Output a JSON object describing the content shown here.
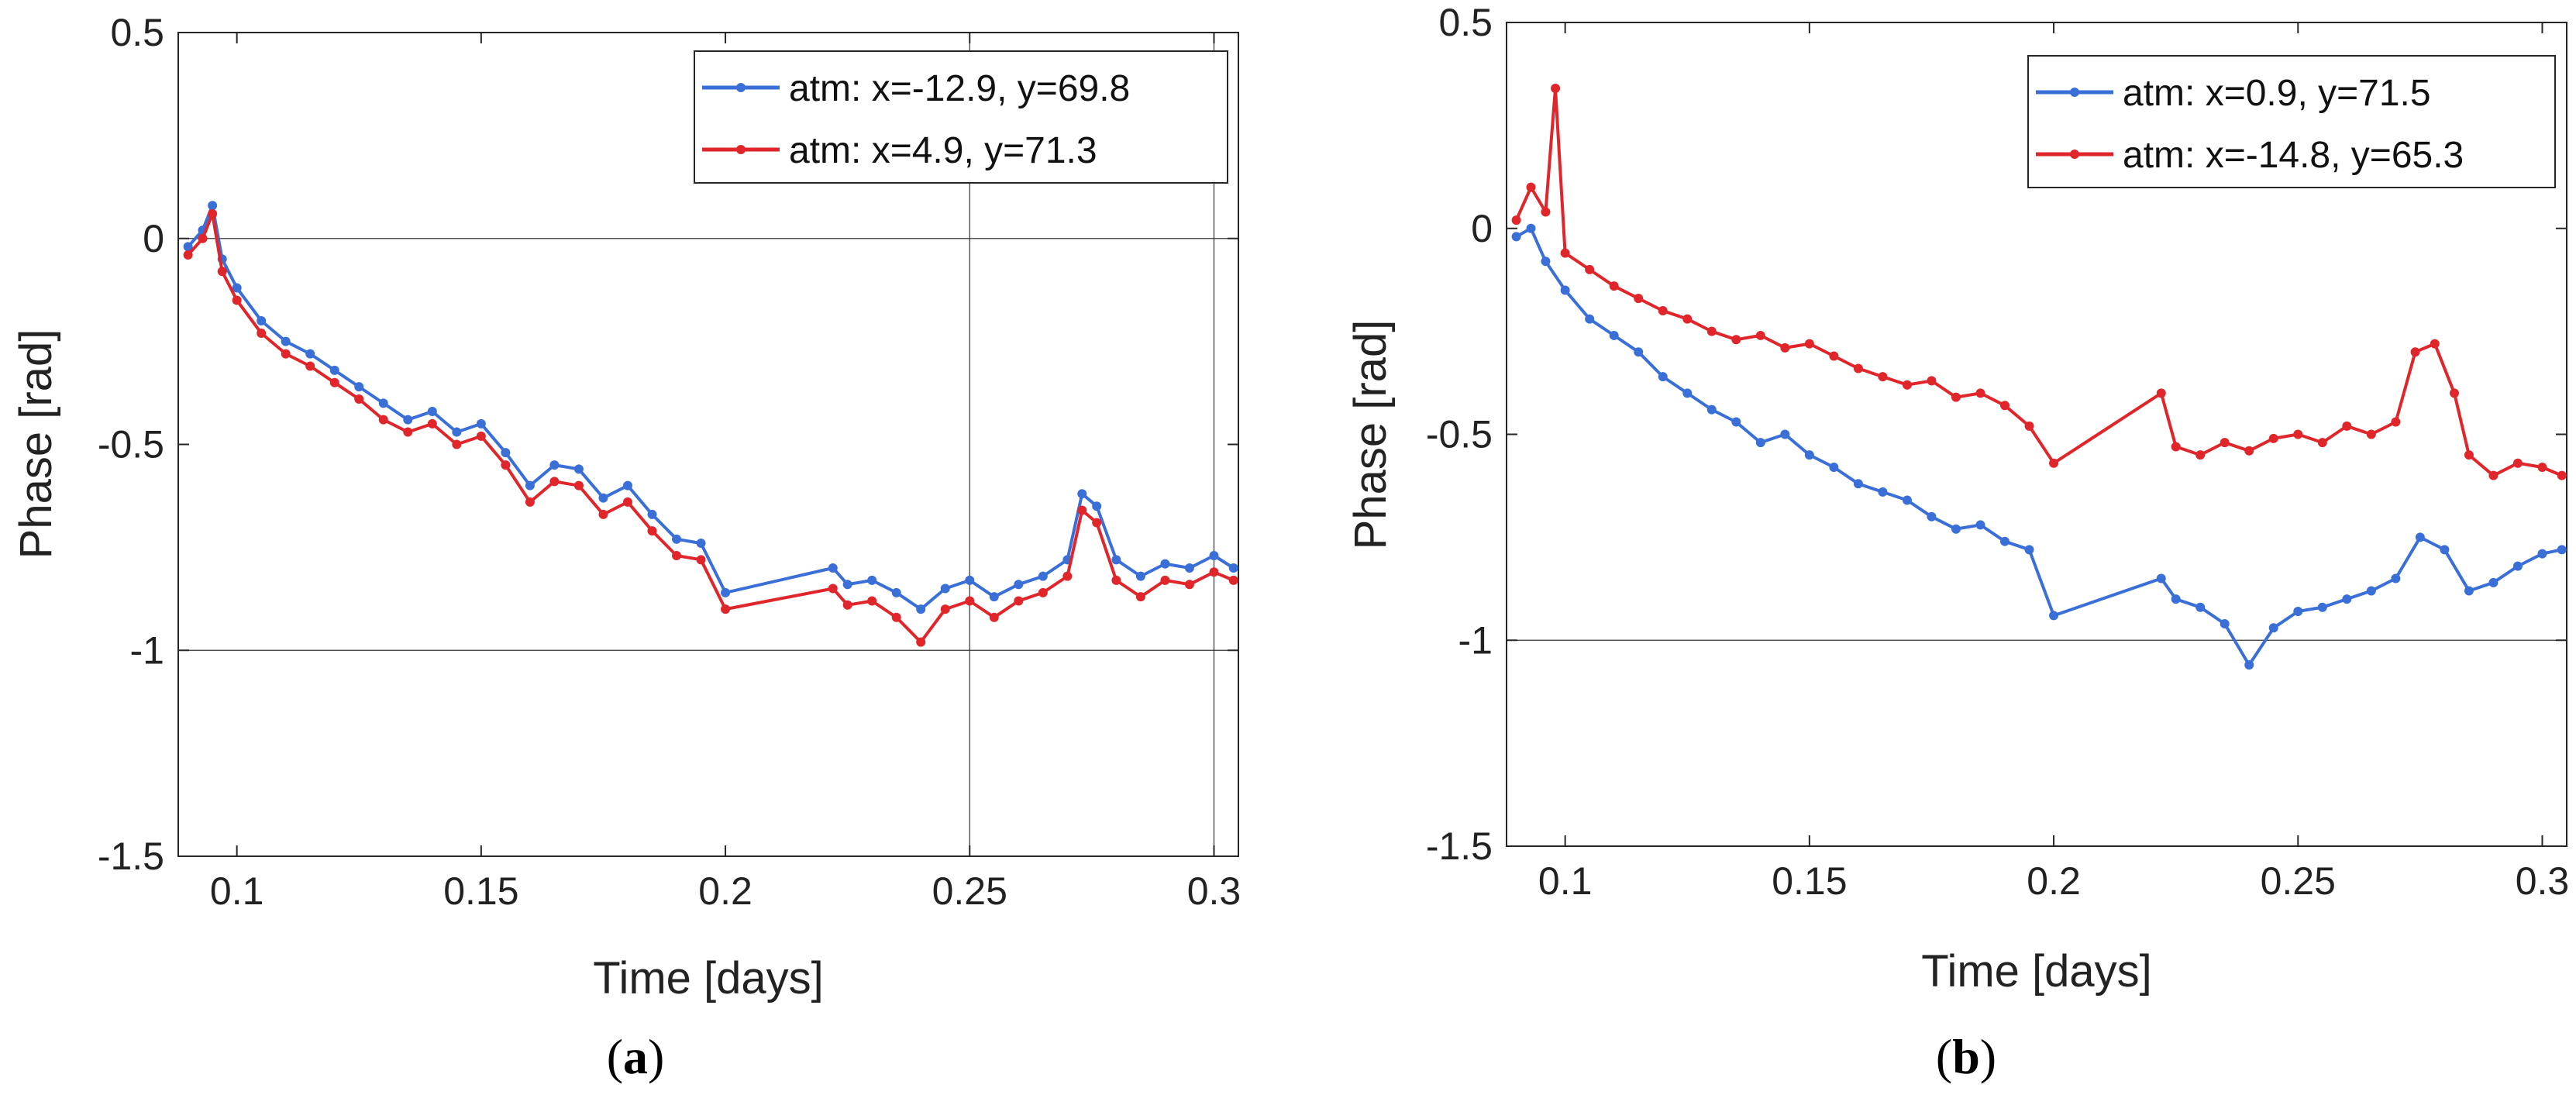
{
  "chart_data": [
    {
      "type": "line",
      "panel_label": "a",
      "xlabel": "Time [days]",
      "ylabel": "Phase [rad]",
      "xlim": [
        0.088,
        0.305
      ],
      "ylim": [
        -1.5,
        0.5
      ],
      "xticks": [
        0.1,
        0.15,
        0.2,
        0.25,
        0.3
      ],
      "xtick_labels": [
        "0.1",
        "0.15",
        "0.2",
        "0.25",
        "0.3"
      ],
      "yticks": [
        -1.5,
        -1,
        -0.5,
        0,
        0.5
      ],
      "ytick_labels": [
        "-1.5",
        "-1",
        "-0.5",
        "0",
        "0.5"
      ],
      "reference_lines": {
        "horizontal": [
          0,
          -1
        ],
        "vertical": [
          0.25,
          0.3
        ]
      },
      "legend_position": "top-right",
      "series": [
        {
          "name": "atm: x=-12.9, y=69.8",
          "color": "#3a6fd8",
          "x": [
            0.09,
            0.093,
            0.095,
            0.097,
            0.1,
            0.105,
            0.11,
            0.115,
            0.12,
            0.125,
            0.13,
            0.135,
            0.14,
            0.145,
            0.15,
            0.155,
            0.16,
            0.165,
            0.17,
            0.175,
            0.18,
            0.185,
            0.19,
            0.195,
            0.2,
            0.222,
            0.225,
            0.23,
            0.235,
            0.24,
            0.245,
            0.25,
            0.255,
            0.26,
            0.265,
            0.27,
            0.273,
            0.276,
            0.28,
            0.285,
            0.29,
            0.295,
            0.3,
            0.304
          ],
          "y": [
            -0.02,
            0.02,
            0.08,
            -0.05,
            -0.12,
            -0.2,
            -0.25,
            -0.28,
            -0.32,
            -0.36,
            -0.4,
            -0.44,
            -0.42,
            -0.47,
            -0.45,
            -0.52,
            -0.6,
            -0.55,
            -0.56,
            -0.63,
            -0.6,
            -0.67,
            -0.73,
            -0.74,
            -0.86,
            -0.8,
            -0.84,
            -0.83,
            -0.86,
            -0.9,
            -0.85,
            -0.83,
            -0.87,
            -0.84,
            -0.82,
            -0.78,
            -0.62,
            -0.65,
            -0.78,
            -0.82,
            -0.79,
            -0.8,
            -0.77,
            -0.8
          ]
        },
        {
          "name": "atm: x=4.9, y=71.3",
          "color": "#e0262b",
          "x": [
            0.09,
            0.093,
            0.095,
            0.097,
            0.1,
            0.105,
            0.11,
            0.115,
            0.12,
            0.125,
            0.13,
            0.135,
            0.14,
            0.145,
            0.15,
            0.155,
            0.16,
            0.165,
            0.17,
            0.175,
            0.18,
            0.185,
            0.19,
            0.195,
            0.2,
            0.222,
            0.225,
            0.23,
            0.235,
            0.24,
            0.245,
            0.25,
            0.255,
            0.26,
            0.265,
            0.27,
            0.273,
            0.276,
            0.28,
            0.285,
            0.29,
            0.295,
            0.3,
            0.304
          ],
          "y": [
            -0.04,
            0.0,
            0.06,
            -0.08,
            -0.15,
            -0.23,
            -0.28,
            -0.31,
            -0.35,
            -0.39,
            -0.44,
            -0.47,
            -0.45,
            -0.5,
            -0.48,
            -0.55,
            -0.64,
            -0.59,
            -0.6,
            -0.67,
            -0.64,
            -0.71,
            -0.77,
            -0.78,
            -0.9,
            -0.85,
            -0.89,
            -0.88,
            -0.92,
            -0.98,
            -0.9,
            -0.88,
            -0.92,
            -0.88,
            -0.86,
            -0.82,
            -0.66,
            -0.69,
            -0.83,
            -0.87,
            -0.83,
            -0.84,
            -0.81,
            -0.83
          ]
        }
      ]
    },
    {
      "type": "line",
      "panel_label": "b",
      "xlabel": "Time [days]",
      "ylabel": "Phase [rad]",
      "xlim": [
        0.088,
        0.305
      ],
      "ylim": [
        -1.5,
        0.5
      ],
      "xticks": [
        0.1,
        0.15,
        0.2,
        0.25,
        0.3
      ],
      "xtick_labels": [
        "0.1",
        "0.15",
        "0.2",
        "0.25",
        "0.3"
      ],
      "yticks": [
        -1.5,
        -1,
        -0.5,
        0,
        0.5
      ],
      "ytick_labels": [
        "-1.5",
        "-1",
        "-0.5",
        "0",
        "0.5"
      ],
      "reference_lines": {
        "horizontal": [
          -1
        ],
        "vertical": []
      },
      "legend_position": "top-right",
      "series": [
        {
          "name": "atm: x=0.9, y=71.5",
          "color": "#3a6fd8",
          "x": [
            0.09,
            0.093,
            0.096,
            0.1,
            0.105,
            0.11,
            0.115,
            0.12,
            0.125,
            0.13,
            0.135,
            0.14,
            0.145,
            0.15,
            0.155,
            0.16,
            0.165,
            0.17,
            0.175,
            0.18,
            0.185,
            0.19,
            0.195,
            0.2,
            0.222,
            0.225,
            0.23,
            0.235,
            0.24,
            0.245,
            0.25,
            0.255,
            0.26,
            0.265,
            0.27,
            0.275,
            0.28,
            0.285,
            0.29,
            0.295,
            0.3,
            0.304
          ],
          "y": [
            -0.02,
            0.0,
            -0.08,
            -0.15,
            -0.22,
            -0.26,
            -0.3,
            -0.36,
            -0.4,
            -0.44,
            -0.47,
            -0.52,
            -0.5,
            -0.55,
            -0.58,
            -0.62,
            -0.64,
            -0.66,
            -0.7,
            -0.73,
            -0.72,
            -0.76,
            -0.78,
            -0.94,
            -0.85,
            -0.9,
            -0.92,
            -0.96,
            -1.06,
            -0.97,
            -0.93,
            -0.92,
            -0.9,
            -0.88,
            -0.85,
            -0.75,
            -0.78,
            -0.88,
            -0.86,
            -0.82,
            -0.79,
            -0.78
          ]
        },
        {
          "name": "atm: x=-14.8, y=65.3",
          "color": "#e0262b",
          "x": [
            0.09,
            0.093,
            0.096,
            0.098,
            0.1,
            0.105,
            0.11,
            0.115,
            0.12,
            0.125,
            0.13,
            0.135,
            0.14,
            0.145,
            0.15,
            0.155,
            0.16,
            0.165,
            0.17,
            0.175,
            0.18,
            0.185,
            0.19,
            0.195,
            0.2,
            0.222,
            0.225,
            0.23,
            0.235,
            0.24,
            0.245,
            0.25,
            0.255,
            0.26,
            0.265,
            0.27,
            0.274,
            0.278,
            0.282,
            0.285,
            0.29,
            0.295,
            0.3,
            0.304
          ],
          "y": [
            0.02,
            0.1,
            0.04,
            0.34,
            -0.06,
            -0.1,
            -0.14,
            -0.17,
            -0.2,
            -0.22,
            -0.25,
            -0.27,
            -0.26,
            -0.29,
            -0.28,
            -0.31,
            -0.34,
            -0.36,
            -0.38,
            -0.37,
            -0.41,
            -0.4,
            -0.43,
            -0.48,
            -0.57,
            -0.4,
            -0.53,
            -0.55,
            -0.52,
            -0.54,
            -0.51,
            -0.5,
            -0.52,
            -0.48,
            -0.5,
            -0.47,
            -0.3,
            -0.28,
            -0.4,
            -0.55,
            -0.6,
            -0.57,
            -0.58,
            -0.6
          ]
        }
      ]
    }
  ]
}
